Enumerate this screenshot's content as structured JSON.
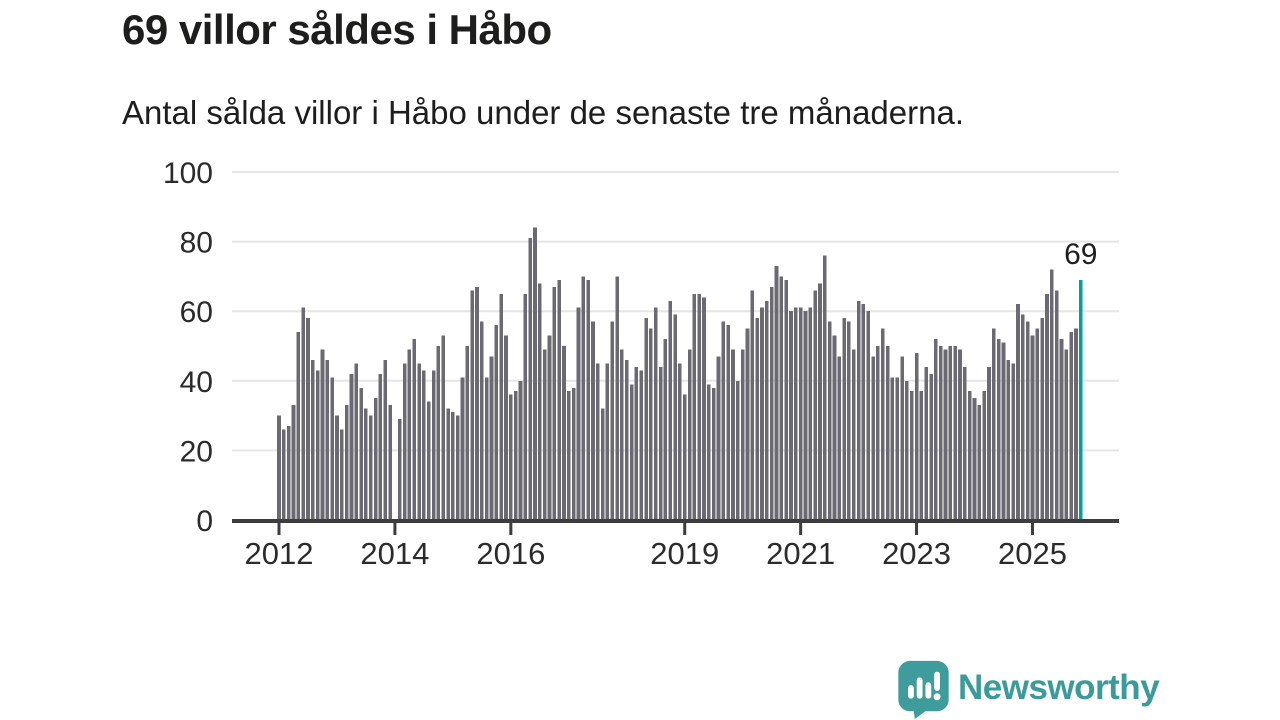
{
  "header": {
    "title": "69 villor såldes i Håbo",
    "subtitle": "Antal sålda villor i Håbo under de senaste tre månaderna."
  },
  "chart_data": {
    "type": "bar",
    "title": "69 villor såldes i Håbo",
    "xlabel": "",
    "ylabel": "",
    "frequency": "monthly",
    "start_month": "2012-01",
    "end_month": "2025-11",
    "ylim": [
      0,
      100
    ],
    "y_ticks": [
      0,
      20,
      40,
      60,
      80,
      100
    ],
    "grid": true,
    "legend": "none",
    "bar_color": "#6b6a72",
    "highlight_color": "#00a19c",
    "gridline_color": "#e5e5e5",
    "axis_color": "#3d3d3d",
    "x_ticks": [
      {
        "label": "2012",
        "month_index": 0
      },
      {
        "label": "2014",
        "month_index": 24
      },
      {
        "label": "2016",
        "month_index": 48
      },
      {
        "label": "2019",
        "month_index": 84
      },
      {
        "label": "2021",
        "month_index": 108
      },
      {
        "label": "2023",
        "month_index": 132
      },
      {
        "label": "2025",
        "month_index": 156
      }
    ],
    "highlight": {
      "month_index": 166,
      "month": "2025-11",
      "value": 69,
      "label": "69"
    },
    "values": [
      30,
      26,
      27,
      33,
      54,
      61,
      58,
      46,
      43,
      49,
      46,
      41,
      30,
      26,
      33,
      42,
      45,
      38,
      32,
      30,
      35,
      42,
      46,
      33,
      0,
      29,
      45,
      49,
      52,
      45,
      43,
      34,
      43,
      50,
      53,
      32,
      31,
      30,
      41,
      50,
      66,
      67,
      57,
      41,
      47,
      56,
      65,
      53,
      36,
      37,
      40,
      65,
      81,
      84,
      68,
      49,
      53,
      67,
      69,
      50,
      37,
      38,
      61,
      70,
      69,
      57,
      45,
      32,
      45,
      57,
      70,
      49,
      46,
      39,
      44,
      43,
      58,
      55,
      61,
      44,
      52,
      63,
      59,
      45,
      36,
      49,
      65,
      65,
      64,
      39,
      38,
      47,
      57,
      56,
      49,
      40,
      49,
      55,
      66,
      58,
      61,
      63,
      67,
      73,
      70,
      69,
      60,
      61,
      61,
      60,
      61,
      66,
      68,
      76,
      57,
      53,
      47,
      58,
      57,
      49,
      63,
      62,
      60,
      47,
      50,
      55,
      50,
      41,
      41,
      47,
      40,
      37,
      48,
      37,
      44,
      42,
      52,
      50,
      49,
      50,
      50,
      49,
      44,
      37,
      35,
      33,
      37,
      44,
      55,
      52,
      51,
      46,
      45,
      62,
      59,
      57,
      53,
      55,
      58,
      65,
      72,
      66,
      52,
      49,
      54,
      55,
      69
    ]
  },
  "branding": {
    "name": "Newsworthy",
    "color": "#3b9a9a",
    "icon": "newsworthy-speech-bubble-chart-icon"
  }
}
